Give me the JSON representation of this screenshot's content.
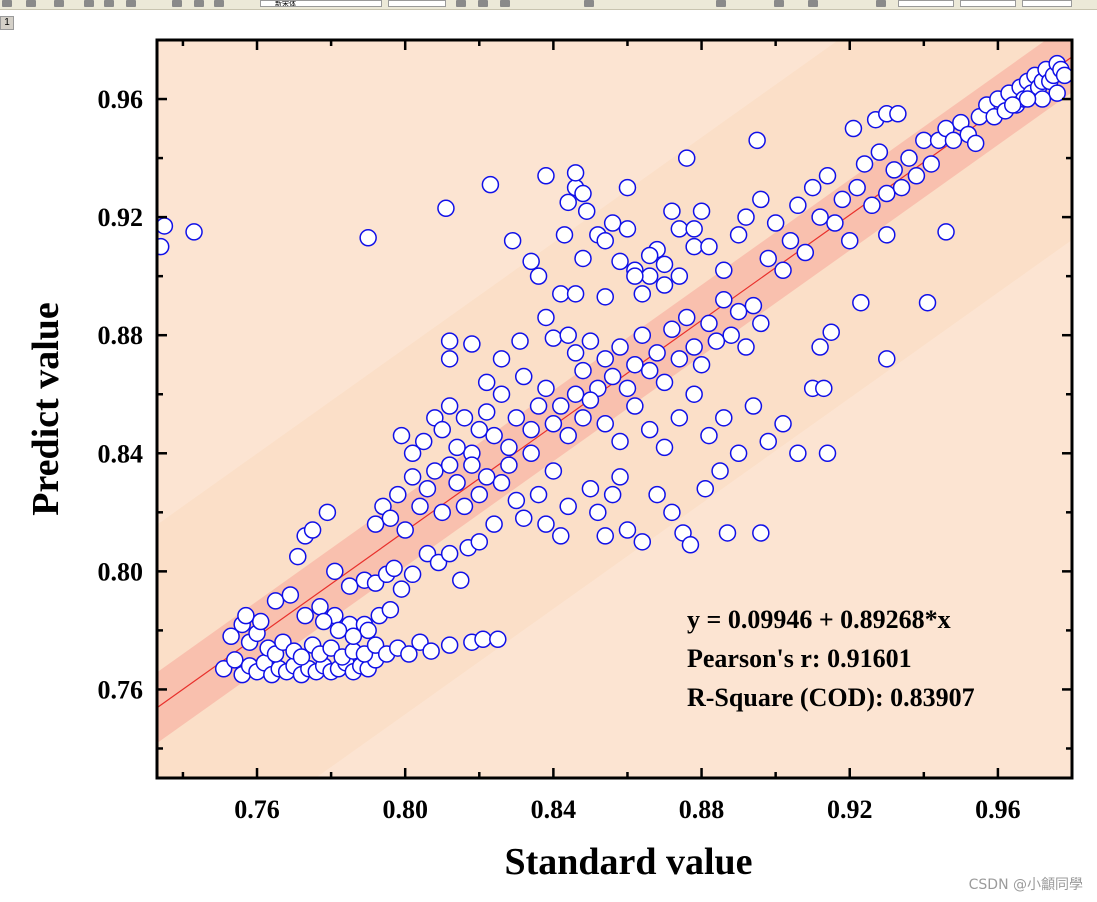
{
  "page_tab": "1",
  "toolbar": {
    "font_name": "新宋体",
    "icons": [
      "grid-icon",
      "table-icon",
      "calculator-icon",
      "chart-icon",
      "gear-icon",
      "copy-icon",
      "undo-icon",
      "redo-icon",
      "paste-icon",
      "bold-icon",
      "italic-icon",
      "underline-icon",
      "font-size-icon",
      "align-left-icon",
      "align-center-icon",
      "align-right-icon",
      "line-style-icon"
    ]
  },
  "watermark": "CSDN @小龥同學",
  "chart_data": {
    "type": "scatter",
    "title": "",
    "xlabel": "Standard value",
    "ylabel": "Predict value",
    "xlim": [
      0.733,
      0.98
    ],
    "ylim": [
      0.73,
      0.98
    ],
    "x_ticks": [
      "0.76",
      "0.80",
      "0.84",
      "0.88",
      "0.92",
      "0.96"
    ],
    "y_ticks": [
      "0.76",
      "0.80",
      "0.84",
      "0.88",
      "0.92",
      "0.96"
    ],
    "x_tick_values": [
      0.76,
      0.8,
      0.84,
      0.88,
      0.92,
      0.96
    ],
    "y_tick_values": [
      0.76,
      0.8,
      0.84,
      0.88,
      0.92,
      0.96
    ],
    "fit": {
      "intercept": 0.09946,
      "slope": 0.89268
    },
    "confidence_band_halfwidth": 0.004,
    "prediction_band_halfwidth": 0.062,
    "annotations": [
      "y = 0.09946 + 0.89268*x",
      "Pearson's r: 0.91601",
      "R-Square (COD): 0.83907"
    ],
    "colors": {
      "prediction_band": "#fbdfc8",
      "confidence_band": "#f9c0ae",
      "fit_line": "#e8302c",
      "marker_edge": "#1010e8",
      "marker_fill": "#ffffff",
      "axis": "#000000"
    },
    "points": [
      [
        0.735,
        0.917
      ],
      [
        0.734,
        0.91
      ],
      [
        0.743,
        0.915
      ],
      [
        0.79,
        0.913
      ],
      [
        0.811,
        0.923
      ],
      [
        0.823,
        0.931
      ],
      [
        0.751,
        0.767
      ],
      [
        0.754,
        0.77
      ],
      [
        0.756,
        0.765
      ],
      [
        0.758,
        0.768
      ],
      [
        0.76,
        0.766
      ],
      [
        0.762,
        0.769
      ],
      [
        0.764,
        0.765
      ],
      [
        0.766,
        0.767
      ],
      [
        0.768,
        0.766
      ],
      [
        0.77,
        0.768
      ],
      [
        0.772,
        0.765
      ],
      [
        0.774,
        0.767
      ],
      [
        0.776,
        0.766
      ],
      [
        0.778,
        0.768
      ],
      [
        0.78,
        0.766
      ],
      [
        0.782,
        0.767
      ],
      [
        0.784,
        0.769
      ],
      [
        0.786,
        0.766
      ],
      [
        0.788,
        0.768
      ],
      [
        0.79,
        0.767
      ],
      [
        0.792,
        0.77
      ],
      [
        0.753,
        0.778
      ],
      [
        0.756,
        0.782
      ],
      [
        0.758,
        0.776
      ],
      [
        0.76,
        0.779
      ],
      [
        0.763,
        0.774
      ],
      [
        0.765,
        0.772
      ],
      [
        0.767,
        0.776
      ],
      [
        0.77,
        0.773
      ],
      [
        0.772,
        0.771
      ],
      [
        0.775,
        0.775
      ],
      [
        0.777,
        0.772
      ],
      [
        0.78,
        0.774
      ],
      [
        0.783,
        0.771
      ],
      [
        0.786,
        0.773
      ],
      [
        0.789,
        0.772
      ],
      [
        0.792,
        0.775
      ],
      [
        0.795,
        0.772
      ],
      [
        0.798,
        0.774
      ],
      [
        0.801,
        0.772
      ],
      [
        0.804,
        0.776
      ],
      [
        0.807,
        0.773
      ],
      [
        0.812,
        0.775
      ],
      [
        0.818,
        0.776
      ],
      [
        0.821,
        0.777
      ],
      [
        0.825,
        0.777
      ],
      [
        0.757,
        0.785
      ],
      [
        0.761,
        0.783
      ],
      [
        0.765,
        0.79
      ],
      [
        0.769,
        0.792
      ],
      [
        0.773,
        0.785
      ],
      [
        0.777,
        0.788
      ],
      [
        0.781,
        0.785
      ],
      [
        0.785,
        0.782
      ],
      [
        0.789,
        0.782
      ],
      [
        0.793,
        0.785
      ],
      [
        0.796,
        0.787
      ],
      [
        0.778,
        0.783
      ],
      [
        0.782,
        0.78
      ],
      [
        0.786,
        0.778
      ],
      [
        0.79,
        0.78
      ],
      [
        0.771,
        0.805
      ],
      [
        0.773,
        0.812
      ],
      [
        0.775,
        0.814
      ],
      [
        0.779,
        0.82
      ],
      [
        0.781,
        0.8
      ],
      [
        0.785,
        0.795
      ],
      [
        0.789,
        0.797
      ],
      [
        0.792,
        0.796
      ],
      [
        0.795,
        0.799
      ],
      [
        0.797,
        0.801
      ],
      [
        0.799,
        0.794
      ],
      [
        0.802,
        0.799
      ],
      [
        0.806,
        0.806
      ],
      [
        0.809,
        0.803
      ],
      [
        0.812,
        0.806
      ],
      [
        0.815,
        0.797
      ],
      [
        0.817,
        0.808
      ],
      [
        0.82,
        0.81
      ],
      [
        0.792,
        0.816
      ],
      [
        0.794,
        0.822
      ],
      [
        0.796,
        0.818
      ],
      [
        0.798,
        0.826
      ],
      [
        0.8,
        0.814
      ],
      [
        0.802,
        0.832
      ],
      [
        0.804,
        0.822
      ],
      [
        0.806,
        0.828
      ],
      [
        0.808,
        0.834
      ],
      [
        0.81,
        0.82
      ],
      [
        0.812,
        0.836
      ],
      [
        0.814,
        0.83
      ],
      [
        0.816,
        0.822
      ],
      [
        0.818,
        0.84
      ],
      [
        0.82,
        0.826
      ],
      [
        0.822,
        0.832
      ],
      [
        0.824,
        0.816
      ],
      [
        0.826,
        0.83
      ],
      [
        0.828,
        0.836
      ],
      [
        0.83,
        0.824
      ],
      [
        0.832,
        0.818
      ],
      [
        0.834,
        0.84
      ],
      [
        0.836,
        0.826
      ],
      [
        0.838,
        0.816
      ],
      [
        0.84,
        0.834
      ],
      [
        0.842,
        0.812
      ],
      [
        0.844,
        0.822
      ],
      [
        0.799,
        0.846
      ],
      [
        0.802,
        0.84
      ],
      [
        0.805,
        0.844
      ],
      [
        0.808,
        0.852
      ],
      [
        0.81,
        0.848
      ],
      [
        0.812,
        0.856
      ],
      [
        0.814,
        0.842
      ],
      [
        0.816,
        0.852
      ],
      [
        0.818,
        0.836
      ],
      [
        0.82,
        0.848
      ],
      [
        0.822,
        0.854
      ],
      [
        0.824,
        0.846
      ],
      [
        0.826,
        0.86
      ],
      [
        0.828,
        0.842
      ],
      [
        0.83,
        0.852
      ],
      [
        0.832,
        0.866
      ],
      [
        0.834,
        0.848
      ],
      [
        0.836,
        0.856
      ],
      [
        0.838,
        0.862
      ],
      [
        0.84,
        0.85
      ],
      [
        0.842,
        0.856
      ],
      [
        0.844,
        0.846
      ],
      [
        0.846,
        0.86
      ],
      [
        0.848,
        0.852
      ],
      [
        0.812,
        0.878
      ],
      [
        0.812,
        0.872
      ],
      [
        0.818,
        0.877
      ],
      [
        0.822,
        0.864
      ],
      [
        0.826,
        0.872
      ],
      [
        0.829,
        0.912
      ],
      [
        0.831,
        0.878
      ],
      [
        0.834,
        0.905
      ],
      [
        0.836,
        0.9
      ],
      [
        0.838,
        0.886
      ],
      [
        0.84,
        0.879
      ],
      [
        0.842,
        0.894
      ],
      [
        0.844,
        0.88
      ],
      [
        0.846,
        0.894
      ],
      [
        0.846,
        0.93
      ],
      [
        0.843,
        0.914
      ],
      [
        0.844,
        0.925
      ],
      [
        0.838,
        0.934
      ],
      [
        0.846,
        0.935
      ],
      [
        0.848,
        0.928
      ],
      [
        0.848,
        0.906
      ],
      [
        0.849,
        0.922
      ],
      [
        0.852,
        0.914
      ],
      [
        0.854,
        0.912
      ],
      [
        0.854,
        0.893
      ],
      [
        0.856,
        0.918
      ],
      [
        0.858,
        0.905
      ],
      [
        0.86,
        0.93
      ],
      [
        0.86,
        0.916
      ],
      [
        0.862,
        0.902
      ],
      [
        0.864,
        0.894
      ],
      [
        0.866,
        0.9
      ],
      [
        0.868,
        0.909
      ],
      [
        0.87,
        0.897
      ],
      [
        0.872,
        0.922
      ],
      [
        0.874,
        0.916
      ],
      [
        0.876,
        0.94
      ],
      [
        0.878,
        0.91
      ],
      [
        0.88,
        0.922
      ],
      [
        0.846,
        0.874
      ],
      [
        0.848,
        0.868
      ],
      [
        0.85,
        0.878
      ],
      [
        0.852,
        0.862
      ],
      [
        0.854,
        0.872
      ],
      [
        0.856,
        0.866
      ],
      [
        0.858,
        0.876
      ],
      [
        0.86,
        0.862
      ],
      [
        0.862,
        0.87
      ],
      [
        0.864,
        0.88
      ],
      [
        0.866,
        0.868
      ],
      [
        0.868,
        0.874
      ],
      [
        0.87,
        0.864
      ],
      [
        0.872,
        0.882
      ],
      [
        0.874,
        0.872
      ],
      [
        0.876,
        0.886
      ],
      [
        0.878,
        0.876
      ],
      [
        0.88,
        0.87
      ],
      [
        0.882,
        0.884
      ],
      [
        0.884,
        0.878
      ],
      [
        0.886,
        0.892
      ],
      [
        0.888,
        0.88
      ],
      [
        0.89,
        0.888
      ],
      [
        0.892,
        0.876
      ],
      [
        0.894,
        0.89
      ],
      [
        0.896,
        0.884
      ],
      [
        0.85,
        0.858
      ],
      [
        0.854,
        0.85
      ],
      [
        0.858,
        0.844
      ],
      [
        0.862,
        0.856
      ],
      [
        0.866,
        0.848
      ],
      [
        0.87,
        0.842
      ],
      [
        0.874,
        0.852
      ],
      [
        0.878,
        0.86
      ],
      [
        0.882,
        0.846
      ],
      [
        0.886,
        0.852
      ],
      [
        0.89,
        0.84
      ],
      [
        0.894,
        0.856
      ],
      [
        0.898,
        0.844
      ],
      [
        0.902,
        0.85
      ],
      [
        0.906,
        0.84
      ],
      [
        0.91,
        0.862
      ],
      [
        0.914,
        0.84
      ],
      [
        0.85,
        0.828
      ],
      [
        0.852,
        0.82
      ],
      [
        0.854,
        0.812
      ],
      [
        0.856,
        0.826
      ],
      [
        0.858,
        0.832
      ],
      [
        0.86,
        0.814
      ],
      [
        0.864,
        0.81
      ],
      [
        0.868,
        0.826
      ],
      [
        0.872,
        0.82
      ],
      [
        0.875,
        0.813
      ],
      [
        0.877,
        0.809
      ],
      [
        0.881,
        0.828
      ],
      [
        0.885,
        0.834
      ],
      [
        0.887,
        0.813
      ],
      [
        0.896,
        0.813
      ],
      [
        0.862,
        0.9
      ],
      [
        0.866,
        0.907
      ],
      [
        0.87,
        0.904
      ],
      [
        0.874,
        0.9
      ],
      [
        0.878,
        0.916
      ],
      [
        0.882,
        0.91
      ],
      [
        0.886,
        0.902
      ],
      [
        0.89,
        0.914
      ],
      [
        0.892,
        0.92
      ],
      [
        0.896,
        0.926
      ],
      [
        0.898,
        0.906
      ],
      [
        0.9,
        0.918
      ],
      [
        0.902,
        0.902
      ],
      [
        0.904,
        0.912
      ],
      [
        0.906,
        0.924
      ],
      [
        0.908,
        0.908
      ],
      [
        0.91,
        0.93
      ],
      [
        0.912,
        0.92
      ],
      [
        0.914,
        0.934
      ],
      [
        0.916,
        0.918
      ],
      [
        0.918,
        0.926
      ],
      [
        0.92,
        0.912
      ],
      [
        0.922,
        0.93
      ],
      [
        0.924,
        0.938
      ],
      [
        0.926,
        0.924
      ],
      [
        0.928,
        0.942
      ],
      [
        0.93,
        0.928
      ],
      [
        0.932,
        0.936
      ],
      [
        0.934,
        0.93
      ],
      [
        0.936,
        0.94
      ],
      [
        0.938,
        0.934
      ],
      [
        0.94,
        0.946
      ],
      [
        0.942,
        0.938
      ],
      [
        0.895,
        0.946
      ],
      [
        0.912,
        0.876
      ],
      [
        0.913,
        0.862
      ],
      [
        0.915,
        0.881
      ],
      [
        0.921,
        0.95
      ],
      [
        0.923,
        0.891
      ],
      [
        0.93,
        0.872
      ],
      [
        0.93,
        0.914
      ],
      [
        0.941,
        0.891
      ],
      [
        0.946,
        0.915
      ],
      [
        0.927,
        0.953
      ],
      [
        0.93,
        0.955
      ],
      [
        0.933,
        0.955
      ],
      [
        0.944,
        0.946
      ],
      [
        0.946,
        0.95
      ],
      [
        0.948,
        0.946
      ],
      [
        0.95,
        0.952
      ],
      [
        0.952,
        0.948
      ],
      [
        0.954,
        0.945
      ],
      [
        0.955,
        0.954
      ],
      [
        0.957,
        0.958
      ],
      [
        0.959,
        0.954
      ],
      [
        0.96,
        0.96
      ],
      [
        0.962,
        0.956
      ],
      [
        0.963,
        0.962
      ],
      [
        0.965,
        0.958
      ],
      [
        0.966,
        0.964
      ],
      [
        0.967,
        0.96
      ],
      [
        0.968,
        0.966
      ],
      [
        0.969,
        0.962
      ],
      [
        0.97,
        0.968
      ],
      [
        0.971,
        0.964
      ],
      [
        0.972,
        0.966
      ],
      [
        0.973,
        0.97
      ],
      [
        0.974,
        0.966
      ],
      [
        0.975,
        0.968
      ],
      [
        0.976,
        0.972
      ],
      [
        0.977,
        0.97
      ],
      [
        0.978,
        0.968
      ],
      [
        0.976,
        0.962
      ],
      [
        0.972,
        0.96
      ],
      [
        0.968,
        0.96
      ],
      [
        0.964,
        0.958
      ]
    ]
  }
}
